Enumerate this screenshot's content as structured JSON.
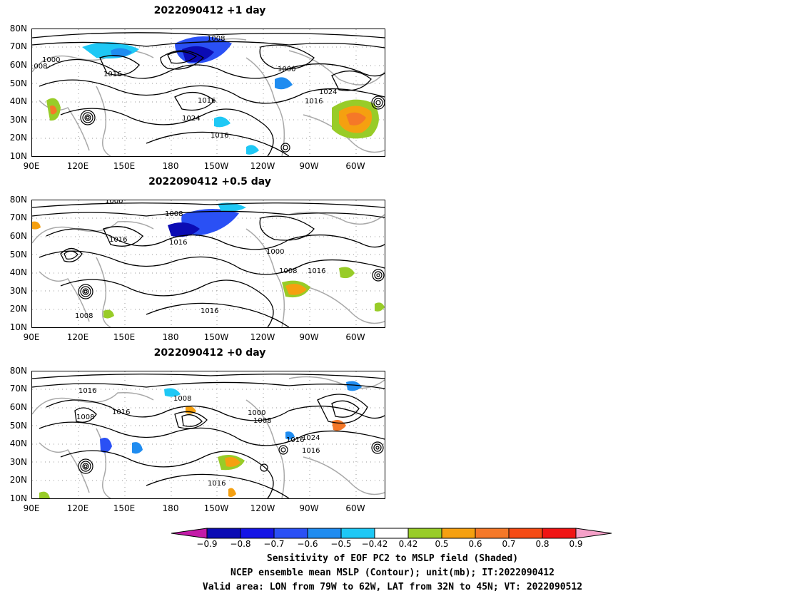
{
  "panels": [
    {
      "title": "2022090412  +1 day"
    },
    {
      "title": "2022090412  +0.5 day"
    },
    {
      "title": "2022090412  +0 day"
    }
  ],
  "y_ticks": [
    "80N",
    "70N",
    "60N",
    "50N",
    "40N",
    "30N",
    "20N",
    "10N"
  ],
  "x_ticks": [
    "90E",
    "120E",
    "150E",
    "180",
    "150W",
    "120W",
    "90W",
    "60W"
  ],
  "contour_labels": {
    "p1": [
      "1008",
      "1000",
      "1016",
      "1000",
      "1024",
      "1016",
      "1024",
      "1016",
      "1016",
      "1008"
    ],
    "p2": [
      "1000",
      "1008",
      "1016",
      "1016",
      "1000",
      "1008",
      "1016",
      "1016",
      "1008"
    ],
    "p3": [
      "1016",
      "1008",
      "1008",
      "1016",
      "1000",
      "1008",
      "1016",
      "1024",
      "1016",
      "1016"
    ]
  },
  "colorbar": {
    "labels": [
      "−0.9",
      "−0.8",
      "−0.7",
      "−0.6",
      "−0.5",
      "−0.42",
      "0.42",
      "0.5",
      "0.6",
      "0.7",
      "0.8",
      "0.9"
    ],
    "colors": [
      "#0b0bb4",
      "#1414e6",
      "#2a50f5",
      "#1f8cf0",
      "#1ec8f5",
      "#ffffff",
      "#98cc28",
      "#f5a010",
      "#f57828",
      "#f54b14",
      "#f01414"
    ],
    "low_extend_color": "#c31aa8",
    "high_extend_color": "#f5a0c8"
  },
  "caption": {
    "line1": "Sensitivity of EOF PC2 to MSLP field (Shaded)",
    "line2": "NCEP ensemble mean MSLP (Contour); unit(mb); IT:2022090412",
    "line3": "Valid area: LON from 79W to 62W, LAT from 32N to 45N; VT: 2022090512"
  }
}
